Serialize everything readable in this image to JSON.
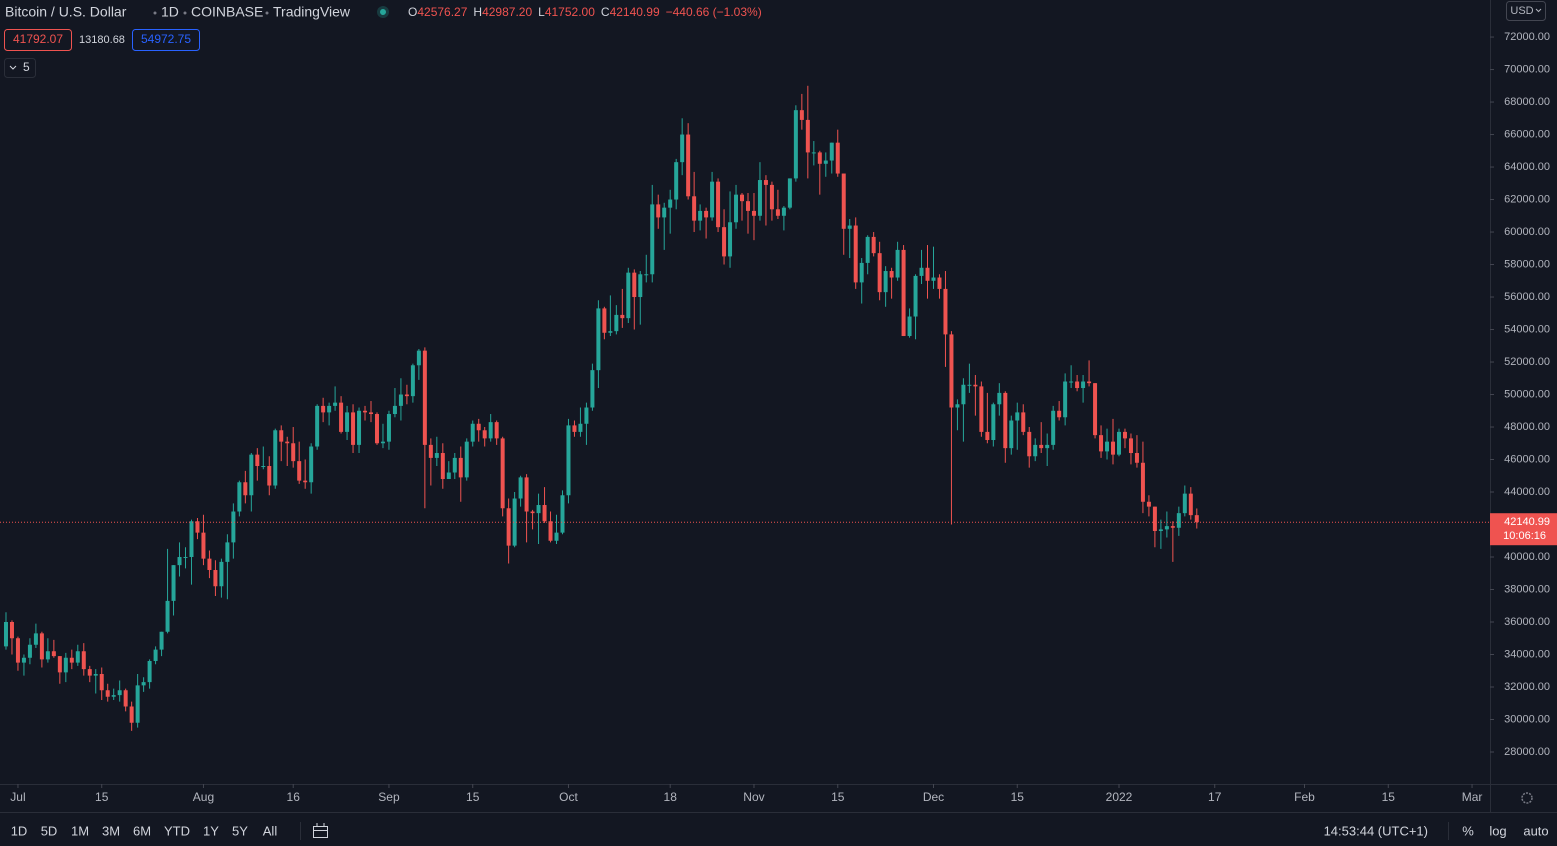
{
  "header": {
    "symbol": "Bitcoin / U.S. Dollar",
    "interval": "1D",
    "exchange": "COINBASE",
    "source": "TradingView",
    "ohlc": [
      {
        "key": "O",
        "value": "42576.27"
      },
      {
        "key": "H",
        "value": "42987.20"
      },
      {
        "key": "L",
        "value": "41752.00"
      },
      {
        "key": "C",
        "value": "42140.99"
      }
    ],
    "change": "−440.66 (−1.03%)",
    "bid": "41792.07",
    "spread": "13180.68",
    "ask": "54972.75",
    "indicators": "5",
    "currency": "USD"
  },
  "chart_data": {
    "type": "candlestick",
    "up_color": "#26a69a",
    "down_color": "#ef5350",
    "grid": false,
    "xlim": [
      "2021-06-28",
      "2022-03-04"
    ],
    "xticks": [
      {
        "value": "2021-07-01",
        "label": "Jul"
      },
      {
        "value": "2021-07-15",
        "label": "15"
      },
      {
        "value": "2021-08-01",
        "label": "Aug"
      },
      {
        "value": "2021-08-16",
        "label": "16"
      },
      {
        "value": "2021-09-01",
        "label": "Sep"
      },
      {
        "value": "2021-09-15",
        "label": "15"
      },
      {
        "value": "2021-10-01",
        "label": "Oct"
      },
      {
        "value": "2021-10-18",
        "label": "18"
      },
      {
        "value": "2021-11-01",
        "label": "Nov"
      },
      {
        "value": "2021-11-15",
        "label": "15"
      },
      {
        "value": "2021-12-01",
        "label": "Dec"
      },
      {
        "value": "2021-12-15",
        "label": "15"
      },
      {
        "value": "2022-01-01",
        "label": "2022"
      },
      {
        "value": "2022-01-17",
        "label": "17"
      },
      {
        "value": "2022-02-01",
        "label": "Feb"
      },
      {
        "value": "2022-02-15",
        "label": "15"
      },
      {
        "value": "2022-03-01",
        "label": "Mar"
      }
    ],
    "ylim": [
      26030,
      74280
    ],
    "yticks": [
      {
        "value": 28000,
        "label": "28000.00"
      },
      {
        "value": 30000,
        "label": "30000.00"
      },
      {
        "value": 32000,
        "label": "32000.00"
      },
      {
        "value": 34000,
        "label": "34000.00"
      },
      {
        "value": 36000,
        "label": "36000.00"
      },
      {
        "value": 38000,
        "label": "38000.00"
      },
      {
        "value": 40000,
        "label": "40000.00"
      },
      {
        "value": 42000,
        "label": "42000.00"
      },
      {
        "value": 44000,
        "label": "44000.00"
      },
      {
        "value": 46000,
        "label": "46000.00"
      },
      {
        "value": 48000,
        "label": "48000.00"
      },
      {
        "value": 50000,
        "label": "50000.00"
      },
      {
        "value": 52000,
        "label": "52000.00"
      },
      {
        "value": 54000,
        "label": "54000.00"
      },
      {
        "value": 56000,
        "label": "56000.00"
      },
      {
        "value": 58000,
        "label": "58000.00"
      },
      {
        "value": 60000,
        "label": "60000.00"
      },
      {
        "value": 62000,
        "label": "62000.00"
      },
      {
        "value": 64000,
        "label": "64000.00"
      },
      {
        "value": 66000,
        "label": "66000.00"
      },
      {
        "value": 68000,
        "label": "68000.00"
      },
      {
        "value": 70000,
        "label": "70000.00"
      },
      {
        "value": 72000,
        "label": "72000.00"
      }
    ],
    "last_price": 42140.99,
    "countdown": "10:06:16",
    "x": [
      "2021-06-29",
      "2021-06-30",
      "2021-07-01",
      "2021-07-02",
      "2021-07-03",
      "2021-07-04",
      "2021-07-05",
      "2021-07-06",
      "2021-07-07",
      "2021-07-08",
      "2021-07-09",
      "2021-07-10",
      "2021-07-11",
      "2021-07-12",
      "2021-07-13",
      "2021-07-14",
      "2021-07-15",
      "2021-07-16",
      "2021-07-17",
      "2021-07-18",
      "2021-07-19",
      "2021-07-20",
      "2021-07-21",
      "2021-07-22",
      "2021-07-23",
      "2021-07-24",
      "2021-07-25",
      "2021-07-26",
      "2021-07-27",
      "2021-07-28",
      "2021-07-29",
      "2021-07-30",
      "2021-07-31",
      "2021-08-01",
      "2021-08-02",
      "2021-08-03",
      "2021-08-04",
      "2021-08-05",
      "2021-08-06",
      "2021-08-07",
      "2021-08-08",
      "2021-08-09",
      "2021-08-10",
      "2021-08-11",
      "2021-08-12",
      "2021-08-13",
      "2021-08-14",
      "2021-08-15",
      "2021-08-16",
      "2021-08-17",
      "2021-08-18",
      "2021-08-19",
      "2021-08-20",
      "2021-08-21",
      "2021-08-22",
      "2021-08-23",
      "2021-08-24",
      "2021-08-25",
      "2021-08-26",
      "2021-08-27",
      "2021-08-28",
      "2021-08-29",
      "2021-08-30",
      "2021-08-31",
      "2021-09-01",
      "2021-09-02",
      "2021-09-03",
      "2021-09-04",
      "2021-09-05",
      "2021-09-06",
      "2021-09-07",
      "2021-09-08",
      "2021-09-09",
      "2021-09-10",
      "2021-09-11",
      "2021-09-12",
      "2021-09-13",
      "2021-09-14",
      "2021-09-15",
      "2021-09-16",
      "2021-09-17",
      "2021-09-18",
      "2021-09-19",
      "2021-09-20",
      "2021-09-21",
      "2021-09-22",
      "2021-09-23",
      "2021-09-24",
      "2021-09-25",
      "2021-09-26",
      "2021-09-27",
      "2021-09-28",
      "2021-09-29",
      "2021-09-30",
      "2021-10-01",
      "2021-10-02",
      "2021-10-03",
      "2021-10-04",
      "2021-10-05",
      "2021-10-06",
      "2021-10-07",
      "2021-10-08",
      "2021-10-09",
      "2021-10-10",
      "2021-10-11",
      "2021-10-12",
      "2021-10-13",
      "2021-10-14",
      "2021-10-15",
      "2021-10-16",
      "2021-10-17",
      "2021-10-18",
      "2021-10-19",
      "2021-10-20",
      "2021-10-21",
      "2021-10-22",
      "2021-10-23",
      "2021-10-24",
      "2021-10-25",
      "2021-10-26",
      "2021-10-27",
      "2021-10-28",
      "2021-10-29",
      "2021-10-30",
      "2021-10-31",
      "2021-11-01",
      "2021-11-02",
      "2021-11-03",
      "2021-11-04",
      "2021-11-05",
      "2021-11-06",
      "2021-11-07",
      "2021-11-08",
      "2021-11-09",
      "2021-11-10",
      "2021-11-11",
      "2021-11-12",
      "2021-11-13",
      "2021-11-14",
      "2021-11-15",
      "2021-11-16",
      "2021-11-17",
      "2021-11-18",
      "2021-11-19",
      "2021-11-20",
      "2021-11-21",
      "2021-11-22",
      "2021-11-23",
      "2021-11-24",
      "2021-11-25",
      "2021-11-26",
      "2021-11-27",
      "2021-11-28",
      "2021-11-29",
      "2021-11-30",
      "2021-12-01",
      "2021-12-02",
      "2021-12-03",
      "2021-12-04",
      "2021-12-05",
      "2021-12-06",
      "2021-12-07",
      "2021-12-08",
      "2021-12-09",
      "2021-12-10",
      "2021-12-11",
      "2021-12-12",
      "2021-12-13",
      "2021-12-14",
      "2021-12-15",
      "2021-12-16",
      "2021-12-17",
      "2021-12-18",
      "2021-12-19",
      "2021-12-20",
      "2021-12-21",
      "2021-12-22",
      "2021-12-23",
      "2021-12-24",
      "2021-12-25",
      "2021-12-26",
      "2021-12-27",
      "2021-12-28",
      "2021-12-29",
      "2021-12-30",
      "2021-12-31",
      "2022-01-01",
      "2022-01-02",
      "2022-01-03",
      "2022-01-04",
      "2022-01-05",
      "2022-01-06",
      "2022-01-07",
      "2022-01-08",
      "2022-01-09",
      "2022-01-10",
      "2022-01-11",
      "2022-01-12",
      "2022-01-13",
      "2022-01-14"
    ],
    "open": [
      34500,
      36000,
      35000,
      33500,
      33800,
      34600,
      35300,
      33700,
      34200,
      33900,
      32900,
      33800,
      33500,
      34200,
      33100,
      32700,
      32800,
      31800,
      31400,
      31500,
      31800,
      30800,
      29800,
      32100,
      32300,
      33600,
      34300,
      35400,
      37300,
      39500,
      40000,
      40000,
      42200,
      41500,
      39900,
      39200,
      38200,
      39700,
      40900,
      42800,
      44600,
      43800,
      46300,
      45600,
      45600,
      44400,
      47800,
      47100,
      47000,
      45900,
      44700,
      44600,
      46800,
      49300,
      48900,
      49300,
      49500,
      47700,
      48900,
      46900,
      49000,
      48900,
      48800,
      47000,
      47100,
      48800,
      49300,
      50000,
      49900,
      51800,
      52700,
      46900,
      46100,
      46400,
      44800,
      45200,
      46100,
      44900,
      47100,
      48200,
      47800,
      47300,
      48300,
      47300,
      43000,
      40700,
      43600,
      44900,
      42800,
      42700,
      43200,
      42200,
      41000,
      41500,
      43800,
      48100,
      47700,
      48200,
      49200,
      51500,
      55300,
      53800,
      53900,
      54900,
      54700,
      57500,
      56000,
      57400,
      57400,
      61700,
      60900,
      61500,
      62000,
      64300,
      66000,
      62200,
      60700,
      61300,
      60900,
      63100,
      60300,
      58500,
      60600,
      62300,
      61900,
      61300,
      61000,
      63200,
      62900,
      61400,
      61000,
      61500,
      63300,
      67500,
      66900,
      64900,
      64900,
      64200,
      64400,
      65500,
      63600,
      60200,
      60400,
      56900,
      58100,
      59700,
      58700,
      56300,
      57600,
      57200,
      58900,
      53600,
      54800,
      57300,
      57800,
      57000,
      57200,
      56500,
      53700,
      49200,
      49400,
      50600,
      50600,
      50500,
      47700,
      47200,
      49400,
      50100,
      46700,
      48400,
      48900,
      47700,
      46200,
      46900,
      46700,
      46900,
      49000,
      48600,
      50800,
      50800,
      50400,
      50800,
      50700,
      47500,
      46500,
      47100,
      46300,
      47700,
      47300,
      46400,
      45800,
      43400,
      43100,
      41600,
      41700,
      41900,
      41800,
      42700,
      43900,
      42576.27
    ],
    "high": [
      36600,
      36100,
      35100,
      34000,
      35000,
      35900,
      35400,
      35000,
      34900,
      33900,
      34100,
      34300,
      34600,
      34700,
      33300,
      33100,
      33200,
      32200,
      31900,
      32400,
      31900,
      31100,
      32800,
      32600,
      33700,
      34500,
      35400,
      40500,
      39500,
      40900,
      40600,
      42300,
      42400,
      42600,
      40400,
      39800,
      39900,
      41400,
      43300,
      44700,
      45300,
      46400,
      46700,
      46800,
      46200,
      47900,
      48100,
      47400,
      48000,
      47100,
      46000,
      47000,
      49400,
      49800,
      49500,
      50500,
      49900,
      49300,
      49400,
      49200,
      49300,
      49600,
      48900,
      48200,
      49000,
      50400,
      51000,
      50600,
      51900,
      52800,
      52900,
      47300,
      47400,
      47000,
      45900,
      46400,
      46800,
      47300,
      48400,
      48500,
      48000,
      48800,
      48400,
      47400,
      43600,
      44000,
      45000,
      45100,
      42900,
      43900,
      44300,
      42800,
      42600,
      44100,
      48500,
      48400,
      49200,
      49500,
      51900,
      55800,
      55400,
      56100,
      55500,
      56500,
      57800,
      57700,
      57600,
      58600,
      62900,
      62300,
      61800,
      62600,
      64500,
      67000,
      66700,
      63700,
      61700,
      61500,
      63700,
      63300,
      61400,
      62500,
      62900,
      62400,
      62400,
      62400,
      64300,
      63500,
      63100,
      62600,
      61600,
      63300,
      67800,
      68500,
      69000,
      65600,
      65000,
      64900,
      65500,
      66300,
      63600,
      60800,
      60900,
      58400,
      59800,
      60000,
      59400,
      57900,
      57800,
      59400,
      59200,
      55300,
      57400,
      58900,
      59200,
      59100,
      57400,
      57600,
      53900,
      49700,
      51000,
      51900,
      51200,
      50800,
      50100,
      49500,
      50700,
      50200,
      48700,
      49500,
      49400,
      48000,
      47300,
      48300,
      47600,
      49300,
      49600,
      51300,
      51800,
      51200,
      51200,
      52100,
      50700,
      48100,
      47900,
      48500,
      47900,
      47900,
      47600,
      47500,
      47100,
      43800,
      43100,
      42300,
      42800,
      42200,
      43100,
      44400,
      44300,
      42987.2
    ],
    "low": [
      34300,
      34000,
      33000,
      32700,
      33400,
      34400,
      33200,
      33500,
      33800,
      32200,
      32300,
      33100,
      33300,
      32700,
      32300,
      31600,
      31200,
      31100,
      31200,
      31100,
      30500,
      29300,
      29500,
      31700,
      31900,
      33400,
      33900,
      35300,
      36400,
      38800,
      39300,
      38300,
      41100,
      39500,
      38700,
      37600,
      37500,
      37400,
      39900,
      42500,
      43300,
      42800,
      44700,
      45400,
      43800,
      44200,
      45900,
      45600,
      45500,
      44500,
      44200,
      43900,
      46600,
      48300,
      48100,
      49000,
      47600,
      47200,
      46400,
      46400,
      48400,
      48300,
      46900,
      46700,
      46600,
      48600,
      48400,
      49400,
      49500,
      50900,
      43000,
      44400,
      45600,
      44200,
      44800,
      44800,
      43400,
      44700,
      46800,
      47100,
      46800,
      47100,
      46900,
      42500,
      39600,
      40600,
      43100,
      40900,
      41700,
      40800,
      42100,
      40900,
      40800,
      41400,
      43300,
      47400,
      47400,
      46900,
      49000,
      50400,
      53400,
      53600,
      53700,
      54100,
      54400,
      54000,
      54300,
      56900,
      56900,
      60200,
      58900,
      59900,
      61400,
      63500,
      62000,
      60000,
      60100,
      59600,
      60700,
      60000,
      58000,
      57800,
      60200,
      60700,
      59900,
      59500,
      60700,
      60400,
      60700,
      60800,
      60100,
      61400,
      63100,
      66300,
      63300,
      64100,
      62300,
      63400,
      63600,
      63400,
      58600,
      58400,
      56500,
      55600,
      57400,
      58500,
      55800,
      55400,
      55900,
      57000,
      53600,
      53500,
      53400,
      56800,
      55900,
      56500,
      55900,
      51700,
      42000,
      47800,
      47100,
      50100,
      48700,
      47400,
      47000,
      46800,
      48700,
      45800,
      46300,
      46600,
      47500,
      45500,
      45900,
      46400,
      45600,
      46600,
      48400,
      48100,
      50400,
      50200,
      49500,
      50500,
      47300,
      46100,
      46000,
      45700,
      46200,
      46700,
      45700,
      45500,
      42700,
      42500,
      40600,
      40500,
      41200,
      39700,
      41300,
      42500,
      42300,
      41752
    ],
    "close": [
      36000,
      35000,
      33500,
      33800,
      34600,
      35300,
      33700,
      34200,
      33900,
      32900,
      33800,
      33500,
      34200,
      33100,
      32700,
      32800,
      31800,
      31400,
      31500,
      31800,
      30800,
      29800,
      32100,
      32300,
      33600,
      34300,
      35400,
      37300,
      39500,
      40000,
      40000,
      42200,
      41500,
      39900,
      39200,
      38200,
      39700,
      40900,
      42800,
      44600,
      43800,
      46300,
      45600,
      45600,
      44400,
      47800,
      47100,
      47000,
      45900,
      44700,
      44600,
      46800,
      49300,
      48900,
      49300,
      49500,
      47700,
      48900,
      46900,
      49000,
      48900,
      48800,
      47000,
      47100,
      48800,
      49300,
      50000,
      49900,
      51800,
      52700,
      46900,
      46100,
      46400,
      44800,
      45200,
      46100,
      44900,
      47100,
      48200,
      47800,
      47300,
      48300,
      47300,
      43000,
      40700,
      43600,
      44900,
      42800,
      42700,
      43200,
      42200,
      41000,
      41500,
      43800,
      48100,
      47700,
      48200,
      49200,
      51500,
      55300,
      53800,
      53900,
      54900,
      54700,
      57500,
      56000,
      57400,
      57400,
      61700,
      60900,
      61500,
      62000,
      64300,
      66000,
      62200,
      60700,
      61300,
      60900,
      63100,
      60300,
      58500,
      60600,
      62300,
      61900,
      61300,
      61000,
      63200,
      62900,
      61400,
      61000,
      61500,
      63300,
      67500,
      66900,
      64900,
      64900,
      64200,
      64400,
      65500,
      63600,
      60200,
      60400,
      56900,
      58100,
      59700,
      58700,
      56300,
      57600,
      57200,
      58900,
      53600,
      54800,
      57300,
      57800,
      57000,
      57200,
      56500,
      53700,
      49200,
      49400,
      50600,
      50600,
      50500,
      47700,
      47200,
      49400,
      50100,
      46700,
      48400,
      48900,
      47700,
      46200,
      46900,
      46700,
      46900,
      49000,
      48600,
      50800,
      50800,
      50400,
      50800,
      50700,
      47500,
      46500,
      47100,
      46300,
      47700,
      47300,
      46400,
      45800,
      43400,
      43100,
      41600,
      41700,
      41900,
      41800,
      42700,
      43900,
      42576.27,
      42140.99
    ]
  },
  "toolbar": {
    "ranges": [
      "1D",
      "5D",
      "1M",
      "3M",
      "6M",
      "YTD",
      "1Y",
      "5Y",
      "All"
    ],
    "clock": "14:53:44 (UTC+1)",
    "percent": "%",
    "log": "log",
    "auto": "auto"
  }
}
